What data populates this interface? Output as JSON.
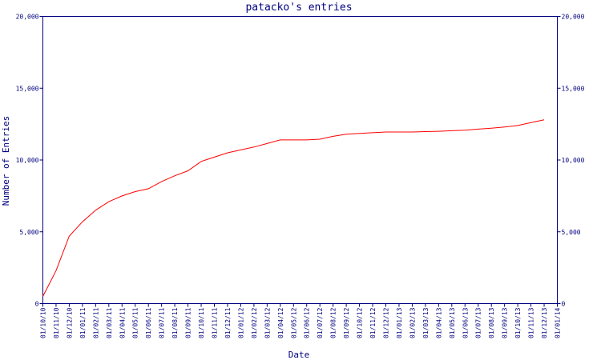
{
  "chart_data": {
    "type": "line",
    "title": "patacko's entries",
    "xlabel": "Date",
    "ylabel": "Number of Entries",
    "ylim": [
      0,
      20000
    ],
    "yticks": [
      0,
      5000,
      10000,
      15000,
      20000
    ],
    "ytick_labels": [
      "0",
      "5,000",
      "10,000",
      "15,000",
      "20,000"
    ],
    "y_axis_right": true,
    "grid": false,
    "colors": {
      "axis": "#00007f",
      "series": "#ff0000"
    },
    "categories": [
      "01/10/10",
      "01/11/10",
      "01/12/10",
      "01/01/11",
      "01/02/11",
      "01/03/11",
      "01/04/11",
      "01/05/11",
      "01/06/11",
      "01/07/11",
      "01/08/11",
      "01/09/11",
      "01/10/11",
      "01/11/11",
      "01/12/11",
      "01/01/12",
      "01/02/12",
      "01/03/12",
      "01/04/12",
      "01/05/12",
      "01/06/12",
      "01/07/12",
      "01/08/12",
      "01/09/12",
      "01/10/12",
      "01/11/12",
      "01/12/12",
      "01/01/13",
      "01/02/13",
      "01/03/13",
      "01/04/13",
      "01/05/13",
      "01/06/13",
      "01/07/13",
      "01/08/13",
      "01/09/13",
      "01/10/13",
      "01/11/13",
      "01/12/13",
      "01/01/14"
    ],
    "series": [
      {
        "x": [
          "01/10/10",
          "01/11/10",
          "01/12/10",
          "01/01/11",
          "01/02/11",
          "01/03/11",
          "01/04/11",
          "01/05/11",
          "01/06/11",
          "01/07/11",
          "01/08/11",
          "01/09/11",
          "01/10/11",
          "01/11/11",
          "01/12/11",
          "01/01/12",
          "01/02/12",
          "01/03/12",
          "01/04/12",
          "01/05/12",
          "01/06/12",
          "01/07/12",
          "01/08/12",
          "01/09/12",
          "01/10/12",
          "01/11/12",
          "01/12/12",
          "01/01/13",
          "01/02/13",
          "01/03/13",
          "01/04/13",
          "01/05/13",
          "01/06/13",
          "01/07/13",
          "01/08/13",
          "01/09/13",
          "01/10/13",
          "01/11/13",
          "01/12/13"
        ],
        "values": [
          500,
          2300,
          4700,
          5700,
          6500,
          7100,
          7500,
          7800,
          8000,
          8500,
          8900,
          9250,
          9900,
          10200,
          10500,
          10700,
          10900,
          11150,
          11400,
          11400,
          11400,
          11450,
          11650,
          11800,
          11850,
          11900,
          11950,
          11950,
          11950,
          11980,
          12000,
          12040,
          12080,
          12150,
          12220,
          12300,
          12400,
          12600,
          12800
        ]
      }
    ]
  }
}
